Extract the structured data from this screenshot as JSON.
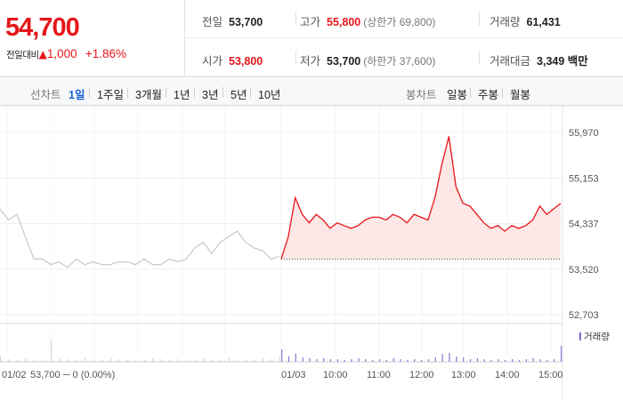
{
  "quote": {
    "price": "54,700",
    "change_label": "전일대비",
    "change_arrow": "▲",
    "change_value": "1,000",
    "change_pct": "+1.86%",
    "prev_close_label": "전일",
    "prev_close": "53,700",
    "high_label": "고가",
    "high": "55,800",
    "upper_limit": "(상한가 69,800)",
    "volume_label": "거래량",
    "volume": "61,431",
    "open_label": "시가",
    "open": "53,800",
    "low_label": "저가",
    "low": "53,700",
    "lower_limit": "(하한가 37,600)",
    "trade_value_label": "거래대금",
    "trade_value": "3,349 백만",
    "up_color": "#e5161a"
  },
  "tabs": {
    "line_label": "선차트",
    "line_items": [
      "1일",
      "1주일",
      "3개월",
      "1년",
      "3년",
      "5년",
      "10년"
    ],
    "active_index": 0,
    "candle_label": "봉차트",
    "candle_items": [
      "일봉",
      "주봉",
      "월봉"
    ]
  },
  "chart_footer": {
    "prev_date": "01/02",
    "prev_close_text": "53,700 ─ 0 (0.00%)",
    "volume_legend": "거래량"
  },
  "chart_data": {
    "type": "line",
    "y_ticks": [
      "55,970",
      "55,153",
      "54,337",
      "53,520",
      "52,703"
    ],
    "ylim": [
      52703,
      55970
    ],
    "x_tick_labels": [
      "01/03",
      "10:00",
      "11:00",
      "12:00",
      "13:00",
      "14:00",
      "15:00"
    ],
    "reference_line": 53700,
    "series": [
      {
        "values": [
          53700,
          54100,
          54800,
          54500,
          54350,
          54500,
          54400,
          54250,
          54350,
          54300,
          54250,
          54300,
          54400,
          54450,
          54450,
          54400,
          54500,
          54450,
          54350,
          54500,
          54450,
          54400,
          54800,
          55400,
          55900,
          55000,
          54700,
          54650,
          54500,
          54350,
          54250,
          54300,
          54200,
          54300,
          54250,
          54300,
          54400,
          54650,
          54500,
          54600,
          54700
        ],
        "color": "#e5161a"
      },
      {
        "values": [
          54600,
          54400,
          54500,
          54100,
          53700,
          53700,
          53600,
          53650,
          53550,
          53700,
          53600,
          53650,
          53600,
          53600,
          53650,
          53650,
          53600,
          53700,
          53600,
          53600,
          53700,
          53650,
          53700,
          53900,
          54000,
          53800,
          54000,
          54100,
          54200,
          54000,
          53900,
          53850,
          53700,
          53750
        ],
        "color": "#c8c8c8"
      }
    ]
  }
}
